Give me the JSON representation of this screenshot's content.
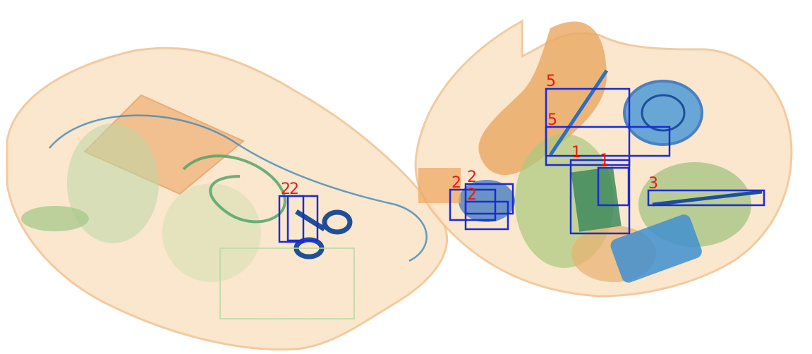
{
  "image": {
    "kind": "xray-baggage-scan",
    "palette": {
      "organic": "#f0b878",
      "organic_light": "#f8ddb8",
      "mixed": "#7fbf6a",
      "mixed_dark": "#4f9a54",
      "metal": "#2d6fc0",
      "metal_dark": "#1d4f99",
      "background": "#ffffff"
    },
    "detection_style": {
      "box_color": "#1a2bd6",
      "label_color": "#e8190f"
    }
  },
  "detections": [
    {
      "label": "2",
      "color_class": "2"
    },
    {
      "label": "2",
      "color_class": "2"
    },
    {
      "label": "2",
      "color_class": "2"
    },
    {
      "label": "2",
      "color_class": "2"
    },
    {
      "label": "2",
      "color_class": "2"
    },
    {
      "label": "5",
      "color_class": "5"
    },
    {
      "label": "5",
      "color_class": "5"
    },
    {
      "label": "1",
      "color_class": "1"
    },
    {
      "label": "1",
      "color_class": "1"
    },
    {
      "label": "3",
      "color_class": "3"
    }
  ]
}
